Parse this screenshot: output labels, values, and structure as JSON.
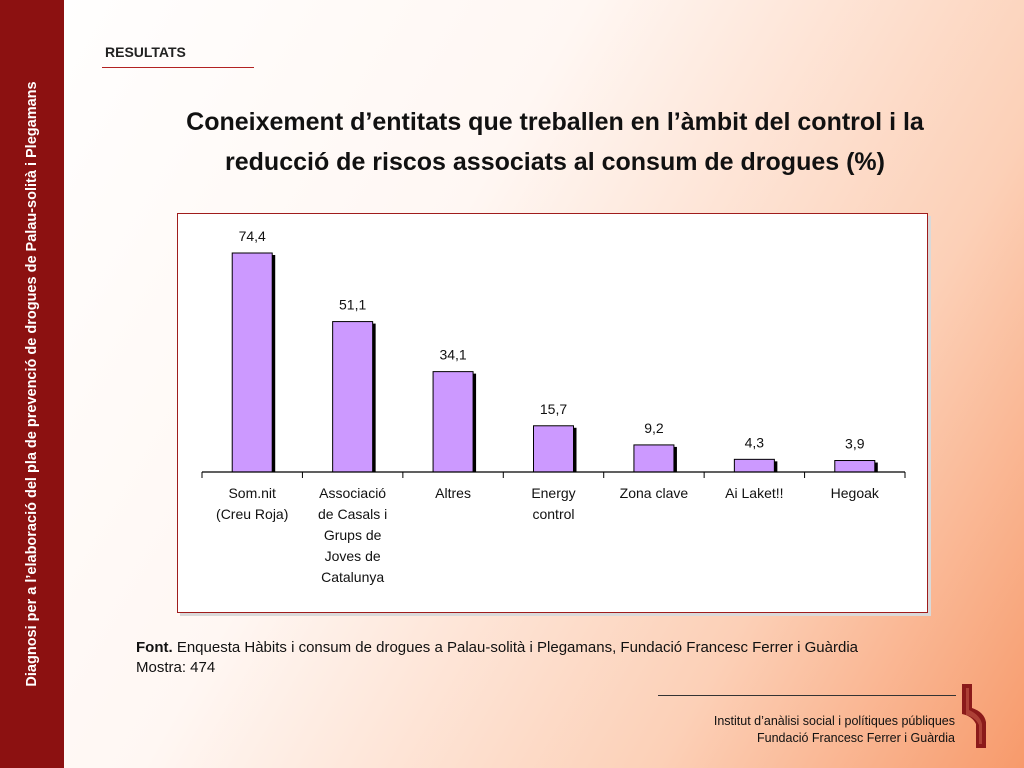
{
  "sidebar": {
    "text": "Diagnosi per a l’elaboració del pla de prevenció de drogues de Palau-solità i Plegamans"
  },
  "section": {
    "label": "RESULTATS"
  },
  "title": {
    "line1": "Coneixement d’entitats que treballen en l’àmbit del control i la",
    "line2": "reducció de riscos associats al consum de drogues (%)"
  },
  "chart_data": {
    "type": "bar",
    "title": "",
    "xlabel": "",
    "ylabel": "",
    "ylim": [
      0,
      80
    ],
    "grid": false,
    "legend": "none",
    "categories": [
      [
        "Som.nit",
        "(Creu Roja)"
      ],
      [
        "Associació",
        "de Casals i",
        "Grups de",
        "Joves de",
        "Catalunya"
      ],
      [
        "Altres"
      ],
      [
        "Energy",
        "control"
      ],
      [
        "Zona clave"
      ],
      [
        "Ai Laket!!"
      ],
      [
        "Hegoak"
      ]
    ],
    "values": [
      74.4,
      51.1,
      34.1,
      15.7,
      9.2,
      4.3,
      3.9
    ],
    "value_labels": [
      "74,4",
      "51,1",
      "34,1",
      "15,7",
      "9,2",
      "4,3",
      "3,9"
    ],
    "bar_color": "#cc99ff",
    "bar_shadow_color": "#000000"
  },
  "source": {
    "label": "Font.",
    "text": "Enquesta Hàbits i consum de drogues a Palau-solità i Plegamans, Fundació Francesc Ferrer i Guàrdia",
    "sample": "Mostra: 474"
  },
  "footer": {
    "line1": "Institut d’anàlisi social i polítiques públiques",
    "line2": "Fundació Francesc Ferrer i Guàrdia"
  },
  "colors": {
    "sidebar": "#8c1111",
    "accent": "#b22222",
    "logo": "#8b1a1a"
  },
  "icons": {
    "logo": "institute-logo-icon"
  }
}
